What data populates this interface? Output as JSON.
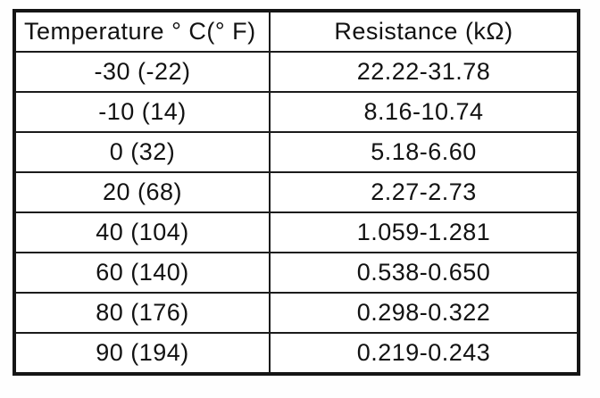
{
  "table": {
    "headers": {
      "temperature": "Temperature ° C(° F)",
      "resistance": "Resistance (kΩ)"
    },
    "rows": [
      {
        "temperature": "-30 (-22)",
        "resistance": "22.22-31.78"
      },
      {
        "temperature": "-10 (14)",
        "resistance": "8.16-10.74"
      },
      {
        "temperature": "0 (32)",
        "resistance": "5.18-6.60"
      },
      {
        "temperature": "20 (68)",
        "resistance": "2.27-2.73"
      },
      {
        "temperature": "40 (104)",
        "resistance": "1.059-1.281"
      },
      {
        "temperature": "60 (140)",
        "resistance": "0.538-0.650"
      },
      {
        "temperature": "80 (176)",
        "resistance": "0.298-0.322"
      },
      {
        "temperature": "90 (194)",
        "resistance": "0.219-0.243"
      }
    ]
  },
  "colors": {
    "background": "#ffffff",
    "border": "#1b1b1b",
    "text": "#121212"
  }
}
